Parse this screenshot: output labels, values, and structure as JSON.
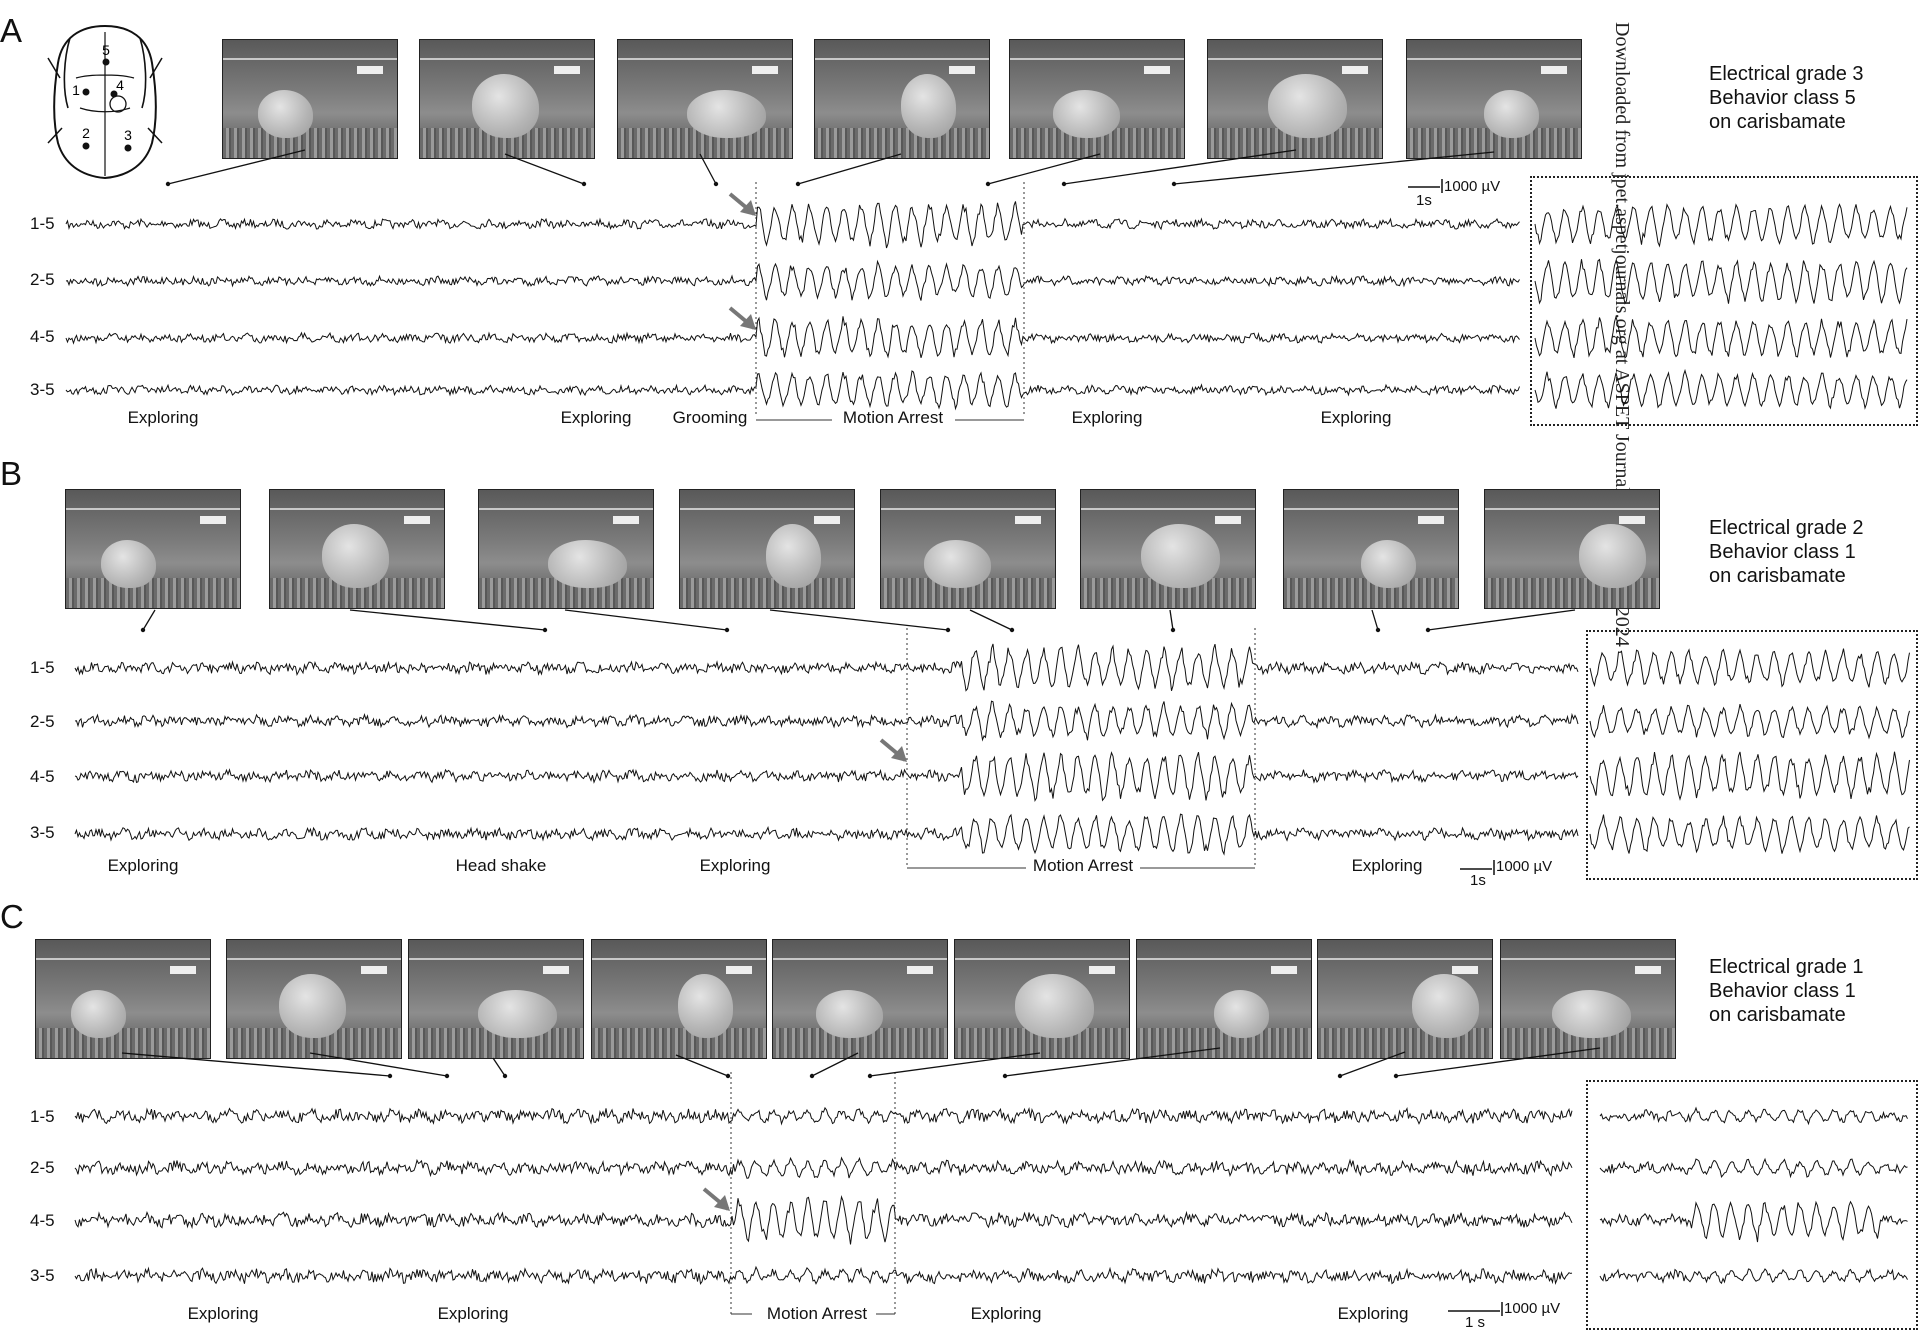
{
  "watermark": "Downloaded from jpet.aspetjournals.org at ASPET Journals on April 19, 2024",
  "panels": [
    {
      "letter": "A",
      "grade": [
        "Electrical grade 3",
        "Behavior class 5",
        "on carisbamate"
      ],
      "channels": [
        "1-5",
        "2-5",
        "4-5",
        "3-5"
      ],
      "behaviors": [
        "Exploring",
        "Exploring",
        "Grooming",
        "Motion Arrest",
        "Exploring",
        "Exploring"
      ],
      "scale": {
        "time": "1s",
        "amp": "1000 µV"
      }
    },
    {
      "letter": "B",
      "grade": [
        "Electrical grade 2",
        "Behavior class 1",
        "on carisbamate"
      ],
      "channels": [
        "1-5",
        "2-5",
        "4-5",
        "3-5"
      ],
      "behaviors": [
        "Exploring",
        "Head shake",
        "Exploring",
        "Motion Arrest",
        "Exploring"
      ],
      "scale": {
        "time": "1s",
        "amp": "1000 µV"
      }
    },
    {
      "letter": "C",
      "grade": [
        "Electrical grade 1",
        "Behavior class 1",
        "on carisbamate"
      ],
      "channels": [
        "1-5",
        "2-5",
        "4-5",
        "3-5"
      ],
      "behaviors": [
        "Exploring",
        "Exploring",
        "Motion Arrest",
        "Exploring",
        "Exploring"
      ],
      "scale": {
        "time": "1 s",
        "amp": "1000 µV"
      }
    }
  ],
  "skull_electrodes": [
    "5",
    "1",
    "4",
    "2",
    "3"
  ]
}
